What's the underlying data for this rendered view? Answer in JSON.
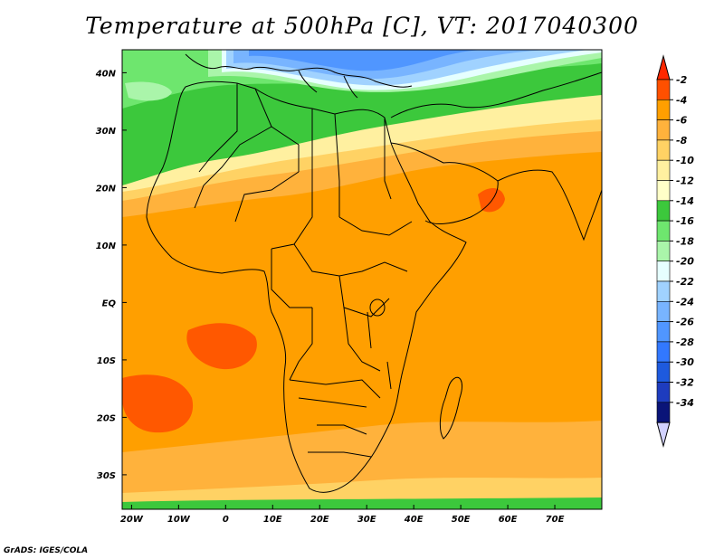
{
  "title": "Temperature at 500hPa [C], VT: 2017040300",
  "credit": "GrADS: IGES/COLA",
  "map": {
    "lat_labels": [
      "40N",
      "30N",
      "20N",
      "10N",
      "EQ",
      "10S",
      "20S",
      "30S"
    ],
    "lon_labels": [
      "20W",
      "10W",
      "0",
      "10E",
      "20E",
      "30E",
      "40E",
      "50E",
      "60E",
      "70E"
    ],
    "lat_range": [
      -36,
      44
    ],
    "lon_range": [
      -22,
      80
    ]
  },
  "legend": {
    "labels": [
      "-2",
      "-4",
      "-6",
      "-8",
      "-10",
      "-12",
      "-14",
      "-16",
      "-18",
      "-20",
      "-22",
      "-24",
      "-26",
      "-28",
      "-30",
      "-32",
      "-34"
    ],
    "colors": [
      "#ff5000",
      "#ff9f00",
      "#ffb23c",
      "#ffd264",
      "#fff0a0",
      "#ffffc8",
      "#3cc83c",
      "#6ee66e",
      "#aaf5aa",
      "#e6ffff",
      "#a0d2ff",
      "#78b4ff",
      "#5096ff",
      "#3278ff",
      "#1e5ade",
      "#1e3cbe",
      "#0a1478"
    ],
    "top_arrow_color": "#ff2800",
    "bottom_arrow_color": "#d2d2ff"
  }
}
